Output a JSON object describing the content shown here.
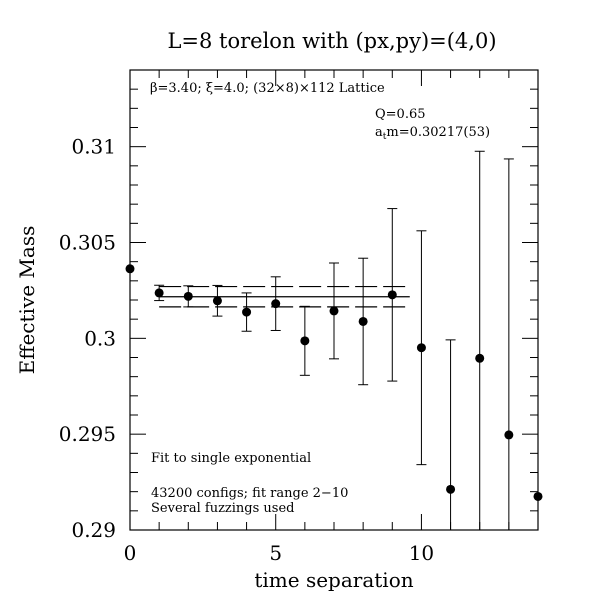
{
  "chart_data": {
    "type": "scatter",
    "title": "L=8 torelon with (px,py)=(4,0)",
    "xlabel": "time separation",
    "ylabel": "Effective Mass",
    "xlim": [
      0,
      14
    ],
    "ylim": [
      0.29,
      0.314
    ],
    "x_ticks": [
      0,
      5,
      10
    ],
    "x_tick_labels": [
      "0",
      "5",
      "10"
    ],
    "y_ticks": [
      0.29,
      0.295,
      0.3,
      0.305,
      0.31
    ],
    "y_tick_labels": [
      "0.29",
      "0.295",
      "0.3",
      "0.305",
      "0.31"
    ],
    "annotations": {
      "lattice": "β=3.40; ξ=4.0; (32×8)×112 Lattice",
      "q": "Q=0.65",
      "mass": "a",
      "mass_sub": "t",
      "mass_rest": "m=0.30217(53)",
      "fit_type": "Fit to single exponential",
      "configs": "43200 configs; fit range 2−10",
      "fuzzings": "Several fuzzings used"
    },
    "fit": {
      "value": 0.30217,
      "error": 0.00053,
      "x_range": [
        1,
        9.6
      ]
    },
    "series": [
      {
        "points": [
          {
            "x": 0,
            "y": 0.30363,
            "err": 0.0
          },
          {
            "x": 1,
            "y": 0.30237,
            "err": 0.0004
          },
          {
            "x": 2,
            "y": 0.30219,
            "err": 0.00055
          },
          {
            "x": 3,
            "y": 0.30196,
            "err": 0.0008
          },
          {
            "x": 4,
            "y": 0.30137,
            "err": 0.001
          },
          {
            "x": 5,
            "y": 0.30181,
            "err": 0.0014
          },
          {
            "x": 6,
            "y": 0.29987,
            "err": 0.0018
          },
          {
            "x": 7,
            "y": 0.30143,
            "err": 0.0025
          },
          {
            "x": 8,
            "y": 0.30088,
            "err": 0.0033
          },
          {
            "x": 9,
            "y": 0.30227,
            "err": 0.0045
          },
          {
            "x": 10,
            "y": 0.29951,
            "err": 0.0061
          },
          {
            "x": 11,
            "y": 0.29212,
            "err": 0.0078
          },
          {
            "x": 12,
            "y": 0.29896,
            "err": 0.0108
          },
          {
            "x": 13,
            "y": 0.29496,
            "err": 0.0144
          },
          {
            "x": 14,
            "y": 0.29175,
            "err": 0.0
          }
        ]
      }
    ]
  }
}
